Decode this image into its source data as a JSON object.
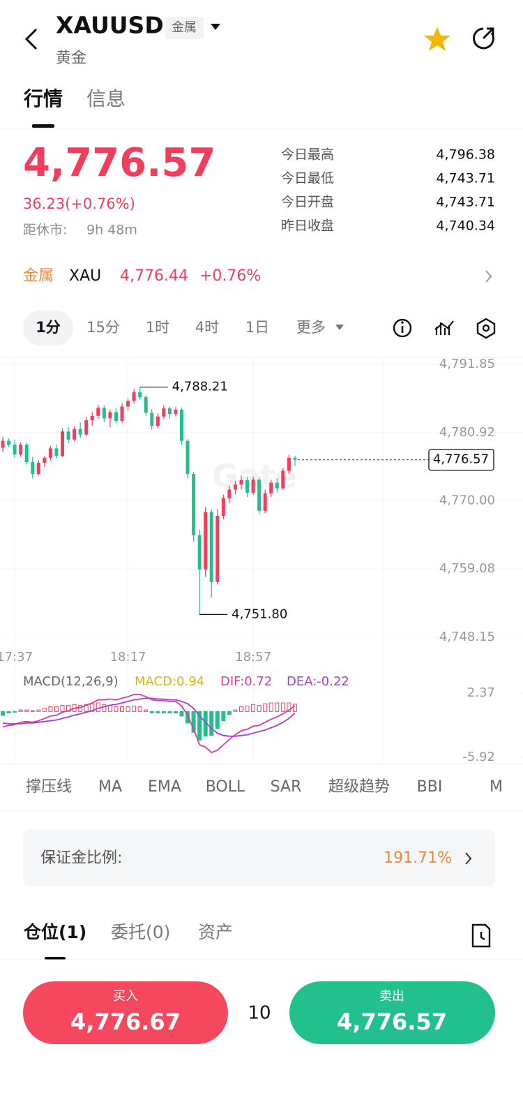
{
  "header": {
    "symbol": "XAUUSD",
    "tag": "金属",
    "name": "黄金"
  },
  "tabs": [
    "行情",
    "信息"
  ],
  "quote": {
    "price": "4,776.57",
    "change": "36.23(+0.76%)",
    "close_label": "距休市:",
    "close_time": "9h 48m"
  },
  "stats": [
    {
      "label": "今日最高",
      "value": "4,796.38"
    },
    {
      "label": "今日最低",
      "value": "4,743.71"
    },
    {
      "label": "今日开盘",
      "value": "4,743.71"
    },
    {
      "label": "昨日收盘",
      "value": "4,740.34"
    }
  ],
  "ticker": {
    "category": "金属",
    "symbol": "XAU",
    "price": "4,776.44",
    "change": "+0.76%"
  },
  "intervals": [
    "1分",
    "15分",
    "1时",
    "4时",
    "1日",
    "更多"
  ],
  "chart_data": [
    {
      "type": "candlestick",
      "watermark": "Gate",
      "up_color": "#f23e5c",
      "down_color": "#22c08c",
      "categories": [
        null,
        null,
        "17:37",
        null,
        null,
        null,
        null,
        null,
        null,
        null,
        null,
        null,
        null,
        null,
        null,
        null,
        null,
        null,
        null,
        null,
        null,
        "18:17",
        null,
        null,
        null,
        null,
        null,
        null,
        null,
        null,
        null,
        null,
        null,
        null,
        null,
        null,
        null,
        null,
        null,
        null,
        null,
        null,
        "18:57",
        null,
        null,
        null,
        null,
        null,
        null,
        null
      ],
      "open": [
        4778.5,
        4779.6,
        4779.0,
        4777.4,
        4779.0,
        4776.2,
        4774.3,
        4776.1,
        4776.9,
        4778.4,
        4777.2,
        4781.1,
        4779.8,
        4781.5,
        4780.6,
        4782.9,
        4783.6,
        4784.9,
        4783.2,
        4784.2,
        4782.8,
        4785.1,
        4786.0,
        4787.4,
        4786.6,
        4784.1,
        4782.0,
        4783.5,
        4784.8,
        4783.9,
        4784.6,
        4779.6,
        4774.3,
        4764.5,
        4759.0,
        4768.2,
        4757.0,
        4767.6,
        4770.4,
        4771.8,
        4772.6,
        4773.3,
        4771.3,
        4773.4,
        4768.4,
        4771.2,
        4772.9,
        4772.0,
        4774.8,
        4776.9
      ],
      "high": [
        4780.2,
        4780.0,
        4779.8,
        4779.4,
        4779.3,
        4777.0,
        4776.5,
        4777.2,
        4778.8,
        4779.0,
        4781.6,
        4781.8,
        4781.9,
        4782.6,
        4783.4,
        4784.2,
        4785.4,
        4785.3,
        4784.6,
        4784.8,
        4785.6,
        4786.4,
        4787.9,
        4788.21,
        4786.9,
        4784.7,
        4784.0,
        4785.3,
        4785.1,
        4785.0,
        4784.9,
        4779.9,
        4774.6,
        4765.4,
        4769.0,
        4768.6,
        4768.7,
        4771.0,
        4772.4,
        4773.2,
        4774.0,
        4773.8,
        4773.9,
        4773.8,
        4771.8,
        4773.4,
        4773.6,
        4775.2,
        4777.4,
        4777.2
      ],
      "low": [
        4777.8,
        4778.6,
        4776.9,
        4777.0,
        4775.8,
        4773.6,
        4774.0,
        4775.4,
        4776.5,
        4776.8,
        4777.0,
        4779.2,
        4779.5,
        4780.0,
        4780.3,
        4782.0,
        4783.1,
        4782.6,
        4781.8,
        4782.4,
        4782.5,
        4784.4,
        4785.6,
        4786.2,
        4783.6,
        4781.4,
        4781.6,
        4783.1,
        4783.2,
        4783.5,
        4779.0,
        4773.6,
        4763.5,
        4751.8,
        4757.8,
        4754.5,
        4756.6,
        4767.0,
        4769.6,
        4771.0,
        4771.8,
        4770.6,
        4770.9,
        4767.8,
        4768.0,
        4770.6,
        4771.3,
        4771.7,
        4774.3,
        4775.6
      ],
      "close": [
        4779.6,
        4779.0,
        4777.4,
        4779.0,
        4776.2,
        4774.3,
        4776.1,
        4776.9,
        4778.4,
        4777.2,
        4781.1,
        4779.8,
        4781.5,
        4780.6,
        4782.9,
        4783.6,
        4784.9,
        4783.2,
        4784.2,
        4782.8,
        4785.1,
        4786.0,
        4787.4,
        4786.6,
        4784.1,
        4782.0,
        4783.5,
        4784.8,
        4783.9,
        4784.6,
        4779.6,
        4774.3,
        4764.5,
        4759.0,
        4768.2,
        4757.0,
        4767.6,
        4770.4,
        4771.8,
        4772.6,
        4773.3,
        4771.3,
        4773.4,
        4768.4,
        4771.2,
        4772.9,
        4772.0,
        4774.8,
        4776.9,
        4776.57
      ],
      "ylim": [
        4746.25,
        4792.97
      ],
      "yticks": [
        {
          "value": 4748.15,
          "label": "4,748.15"
        },
        {
          "value": 4759.08,
          "label": "4,759.08"
        },
        {
          "value": 4770.0,
          "label": "4,770.00"
        },
        {
          "value": 4780.92,
          "label": "4,780.92"
        },
        {
          "value": 4791.85,
          "label": "4,791.85"
        }
      ],
      "grid": true,
      "max_label": {
        "value": 4788.21,
        "label": "4,788.21"
      },
      "min_label": {
        "value": 4751.8,
        "label": "4,751.80"
      },
      "last_price": {
        "value": 4776.57,
        "label": "4,776.57"
      }
    },
    {
      "type": "macd",
      "title": "MACD(12,26,9)",
      "up_color": "#f23e5c",
      "down_color": "#22c08c",
      "series": [
        {
          "name": "MACD:0.94",
          "color": "#e8b10a",
          "values": [
            -0.5,
            -0.2,
            -0.1,
            0.2,
            0.2,
            0.1,
            0.2,
            0.4,
            0.6,
            0.6,
            0.8,
            0.8,
            0.9,
            0.8,
            0.9,
            1.0,
            1.1,
            0.9,
            0.8,
            0.6,
            0.6,
            0.6,
            0.7,
            0.6,
            0.2,
            -0.2,
            -0.2,
            -0.2,
            -0.2,
            -0.2,
            -0.6,
            -1.5,
            -2.7,
            -3.7,
            -3.2,
            -3.1,
            -2.2,
            -1.2,
            -0.4,
            0.2,
            0.6,
            0.7,
            0.9,
            0.8,
            1.0,
            1.1,
            1.1,
            1.1,
            1.1,
            0.94
          ]
        },
        {
          "name": "DIF:0.72",
          "color": "#e0389a",
          "values": [
            -2.0,
            -1.8,
            -1.7,
            -1.4,
            -1.3,
            -1.4,
            -1.2,
            -0.9,
            -0.6,
            -0.5,
            -0.1,
            0.1,
            0.4,
            0.5,
            0.8,
            1.1,
            1.5,
            1.5,
            1.6,
            1.5,
            1.7,
            1.9,
            2.2,
            2.2,
            1.9,
            1.5,
            1.4,
            1.4,
            1.3,
            1.3,
            0.7,
            -0.5,
            -2.3,
            -4.3,
            -4.6,
            -5.3,
            -5.0,
            -4.3,
            -3.6,
            -3.0,
            -2.5,
            -2.3,
            -1.9,
            -1.8,
            -1.4,
            -1.0,
            -0.7,
            -0.3,
            0.2,
            0.72
          ]
        },
        {
          "name": "DEA:-0.22",
          "color": "#a33cd8",
          "values": [
            -1.5,
            -1.6,
            -1.6,
            -1.6,
            -1.5,
            -1.5,
            -1.4,
            -1.3,
            -1.2,
            -1.1,
            -0.9,
            -0.7,
            -0.5,
            -0.3,
            -0.1,
            0.1,
            0.4,
            0.6,
            0.8,
            0.9,
            1.1,
            1.3,
            1.5,
            1.6,
            1.7,
            1.7,
            1.6,
            1.6,
            1.5,
            1.5,
            1.3,
            1.0,
            0.4,
            -0.6,
            -1.4,
            -2.2,
            -2.8,
            -3.1,
            -3.2,
            -3.2,
            -3.1,
            -3.0,
            -2.8,
            -2.6,
            -2.4,
            -2.1,
            -1.8,
            -1.4,
            -0.9,
            -0.22
          ]
        }
      ],
      "ylim": [
        -6.55,
        4.89
      ],
      "yticks": [
        -5.92,
        2.37
      ]
    }
  ],
  "indicators": [
    "撑压线",
    "MA",
    "EMA",
    "BOLL",
    "SAR",
    "超级趋势",
    "BBI",
    "M"
  ],
  "margin": {
    "label": "保证金比例:",
    "value": "191.71%"
  },
  "position_tabs": [
    "仓位(1)",
    "委托(0)",
    "资产"
  ],
  "order": {
    "buy_label": "买入",
    "buy_price": "4,776.67",
    "quantity": "10",
    "sell_label": "卖出",
    "sell_price": "4,776.57"
  }
}
